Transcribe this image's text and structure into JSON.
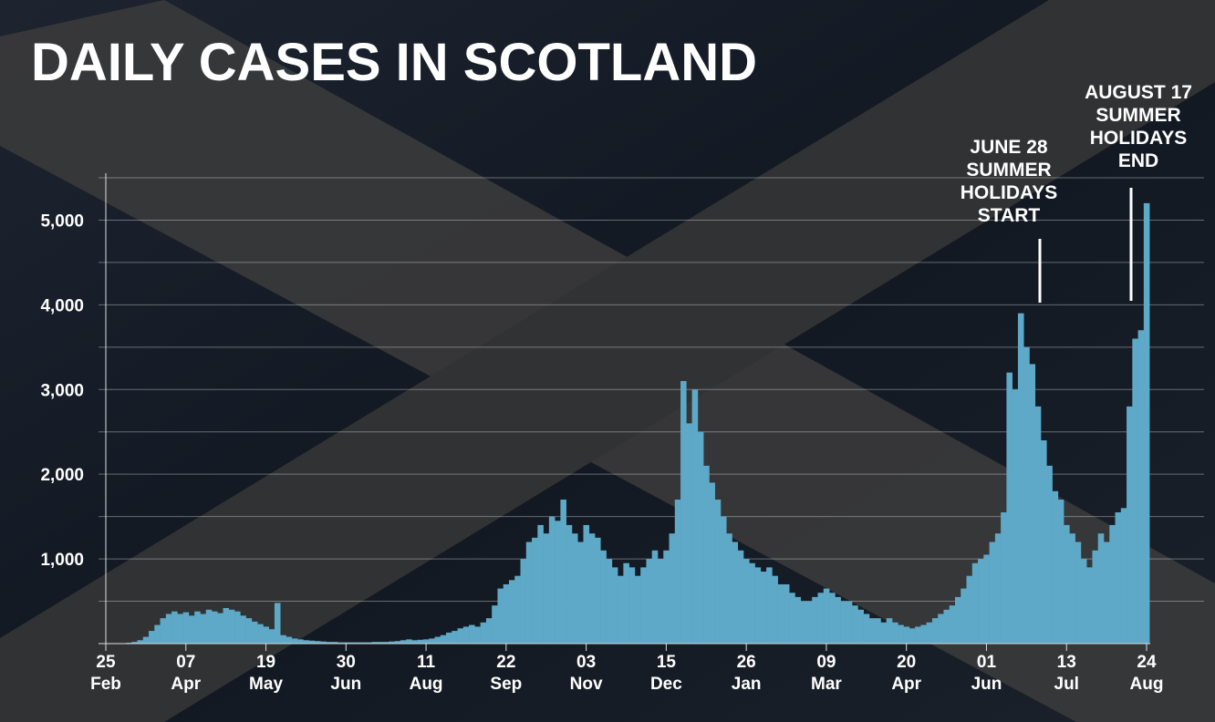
{
  "chart_data": {
    "type": "bar",
    "title": "DAILY CASES IN SCOTLAND",
    "categories": [
      "25 Feb",
      null,
      null,
      null,
      null,
      null,
      null,
      null,
      null,
      null,
      null,
      null,
      null,
      null,
      "07 Apr",
      null,
      null,
      null,
      null,
      null,
      null,
      null,
      null,
      null,
      null,
      null,
      null,
      null,
      "19 May",
      null,
      null,
      null,
      null,
      null,
      null,
      null,
      null,
      null,
      null,
      null,
      null,
      null,
      "30 Jun",
      null,
      null,
      null,
      null,
      null,
      null,
      null,
      null,
      null,
      null,
      null,
      null,
      null,
      "11 Aug",
      null,
      null,
      null,
      null,
      null,
      null,
      null,
      null,
      null,
      null,
      null,
      null,
      null,
      "22 Sep",
      null,
      null,
      null,
      null,
      null,
      null,
      null,
      null,
      null,
      null,
      null,
      null,
      null,
      "03 Nov",
      null,
      null,
      null,
      null,
      null,
      null,
      null,
      null,
      null,
      null,
      null,
      null,
      null,
      "15 Dec",
      null,
      null,
      null,
      null,
      null,
      null,
      null,
      null,
      null,
      null,
      null,
      null,
      null,
      "26 Jan",
      null,
      null,
      null,
      null,
      null,
      null,
      null,
      null,
      null,
      null,
      null,
      null,
      null,
      "09 Mar",
      null,
      null,
      null,
      null,
      null,
      null,
      null,
      null,
      null,
      null,
      null,
      null,
      null,
      "20 Apr",
      null,
      null,
      null,
      null,
      null,
      null,
      null,
      null,
      null,
      null,
      null,
      null,
      null,
      "01 Jun",
      null,
      null,
      null,
      null,
      null,
      null,
      null,
      null,
      null,
      null,
      null,
      null,
      null,
      "13 Jul",
      null,
      null,
      null,
      null,
      null,
      null,
      null,
      null,
      null,
      null,
      null,
      null,
      null,
      "24 Aug"
    ],
    "values": [
      0,
      0,
      0,
      5,
      10,
      20,
      40,
      80,
      150,
      220,
      300,
      350,
      380,
      350,
      370,
      330,
      380,
      350,
      400,
      380,
      360,
      420,
      400,
      380,
      330,
      300,
      260,
      230,
      200,
      170,
      480,
      100,
      80,
      60,
      50,
      40,
      35,
      30,
      25,
      20,
      20,
      15,
      15,
      15,
      15,
      15,
      15,
      20,
      20,
      20,
      25,
      30,
      40,
      50,
      40,
      45,
      50,
      60,
      80,
      100,
      130,
      150,
      180,
      200,
      220,
      200,
      250,
      300,
      450,
      650,
      700,
      750,
      800,
      1000,
      1200,
      1250,
      1400,
      1300,
      1500,
      1450,
      1700,
      1400,
      1300,
      1200,
      1400,
      1300,
      1250,
      1100,
      1000,
      900,
      800,
      950,
      900,
      800,
      900,
      1000,
      1100,
      1000,
      1100,
      1300,
      1700,
      3100,
      2600,
      3000,
      2500,
      2100,
      1900,
      1700,
      1500,
      1300,
      1200,
      1100,
      1000,
      950,
      900,
      850,
      900,
      800,
      700,
      700,
      600,
      550,
      500,
      500,
      550,
      600,
      650,
      600,
      550,
      500,
      500,
      450,
      400,
      350,
      300,
      300,
      250,
      300,
      250,
      220,
      200,
      180,
      200,
      220,
      250,
      300,
      350,
      400,
      450,
      550,
      650,
      800,
      950,
      1000,
      1050,
      1200,
      1300,
      1550,
      3200,
      3000,
      3900,
      3500,
      3300,
      2800,
      2400,
      2100,
      1800,
      1700,
      1400,
      1300,
      1200,
      1000,
      900,
      1100,
      1300,
      1200,
      1400,
      1550,
      1600,
      2800,
      3600,
      3700,
      5200
    ],
    "color": "#5ea9c7",
    "ylim": [
      0,
      5500
    ],
    "yticks": [
      {
        "value": 1000,
        "label": "1,000"
      },
      {
        "value": 2000,
        "label": "2,000"
      },
      {
        "value": 3000,
        "label": "3,000"
      },
      {
        "value": 4000,
        "label": "4,000"
      },
      {
        "value": 5000,
        "label": "5,000"
      }
    ],
    "minor_yticks": [
      500,
      1500,
      2500,
      3500,
      4500,
      5500
    ],
    "grid": true,
    "annotations": [
      {
        "lines": [
          "JUNE 28",
          "SUMMER",
          "HOLIDAYS",
          "START"
        ]
      },
      {
        "lines": [
          "AUGUST 17",
          "SUMMER",
          "HOLIDAYS",
          "END"
        ]
      }
    ]
  }
}
